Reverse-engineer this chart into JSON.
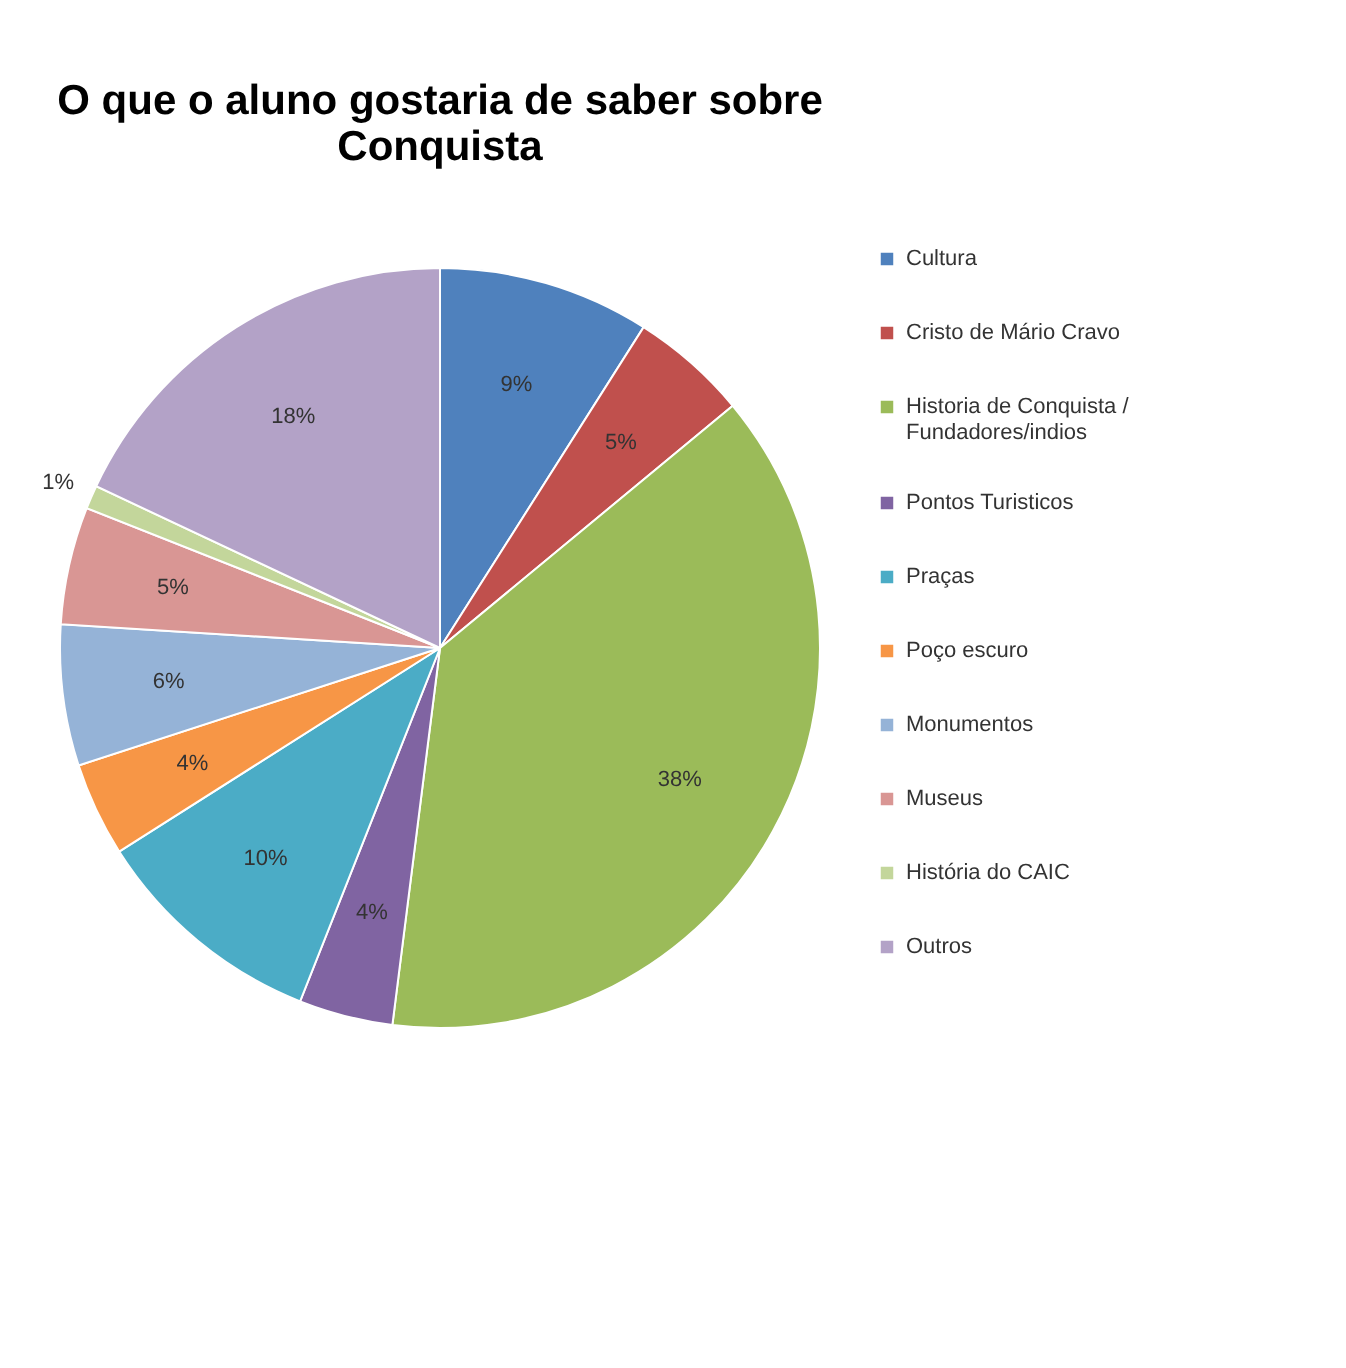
{
  "chart_data": {
    "type": "pie",
    "title": "O que o aluno gostaria de saber sobre Conquista",
    "categories": [
      "Cultura",
      "Cristo de Mário Cravo",
      "Historia de Conquista / Fundadores/indios",
      "Pontos Turisticos",
      "Praças",
      "Poço escuro",
      "Monumentos",
      "Museus",
      "História do CAIC",
      "Outros"
    ],
    "values": [
      9,
      5,
      38,
      4,
      10,
      4,
      6,
      5,
      1,
      18
    ],
    "value_labels": [
      "9%",
      "5%",
      "38%",
      "4%",
      "10%",
      "4%",
      "6%",
      "5%",
      "1%",
      "18%"
    ],
    "colors": [
      "#4f81bd",
      "#c0504d",
      "#9bbb59",
      "#8064a2",
      "#4bacc6",
      "#f79646",
      "#95b3d7",
      "#d99694",
      "#c3d69b",
      "#b3a2c7"
    ],
    "legend": "right"
  }
}
